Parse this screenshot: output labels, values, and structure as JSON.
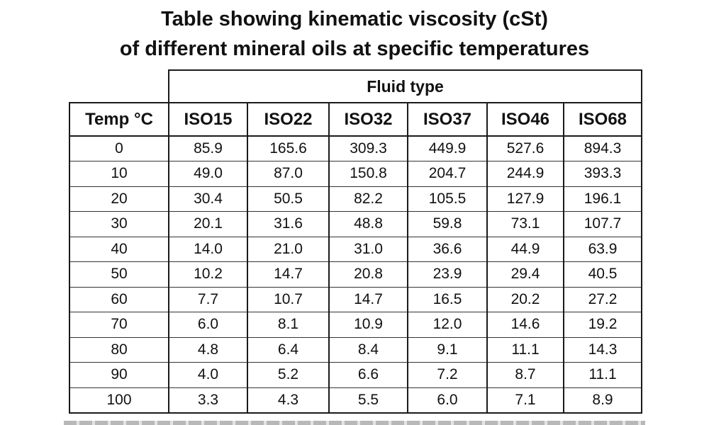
{
  "title": {
    "line1": "Table showing kinematic viscosity (cSt)",
    "line2": "of different mineral oils at specific temperatures"
  },
  "chart_data": {
    "type": "table",
    "group_header": "Fluid type",
    "row_header": "Temp °C",
    "columns": [
      "ISO15",
      "ISO22",
      "ISO32",
      "ISO37",
      "ISO46",
      "ISO68"
    ],
    "rows": [
      {
        "temp": "0",
        "values": [
          "85.9",
          "165.6",
          "309.3",
          "449.9",
          "527.6",
          "894.3"
        ]
      },
      {
        "temp": "10",
        "values": [
          "49.0",
          "87.0",
          "150.8",
          "204.7",
          "244.9",
          "393.3"
        ]
      },
      {
        "temp": "20",
        "values": [
          "30.4",
          "50.5",
          "82.2",
          "105.5",
          "127.9",
          "196.1"
        ]
      },
      {
        "temp": "30",
        "values": [
          "20.1",
          "31.6",
          "48.8",
          "59.8",
          "73.1",
          "107.7"
        ]
      },
      {
        "temp": "40",
        "values": [
          "14.0",
          "21.0",
          "31.0",
          "36.6",
          "44.9",
          "63.9"
        ]
      },
      {
        "temp": "50",
        "values": [
          "10.2",
          "14.7",
          "20.8",
          "23.9",
          "29.4",
          "40.5"
        ]
      },
      {
        "temp": "60",
        "values": [
          "7.7",
          "10.7",
          "14.7",
          "16.5",
          "20.2",
          "27.2"
        ]
      },
      {
        "temp": "70",
        "values": [
          "6.0",
          "8.1",
          "10.9",
          "12.0",
          "14.6",
          "19.2"
        ]
      },
      {
        "temp": "80",
        "values": [
          "4.8",
          "6.4",
          "8.4",
          "9.1",
          "11.1",
          "14.3"
        ]
      },
      {
        "temp": "90",
        "values": [
          "4.0",
          "5.2",
          "6.6",
          "7.2",
          "8.7",
          "11.1"
        ]
      },
      {
        "temp": "100",
        "values": [
          "3.3",
          "4.3",
          "5.5",
          "6.0",
          "7.1",
          "8.9"
        ]
      }
    ]
  }
}
